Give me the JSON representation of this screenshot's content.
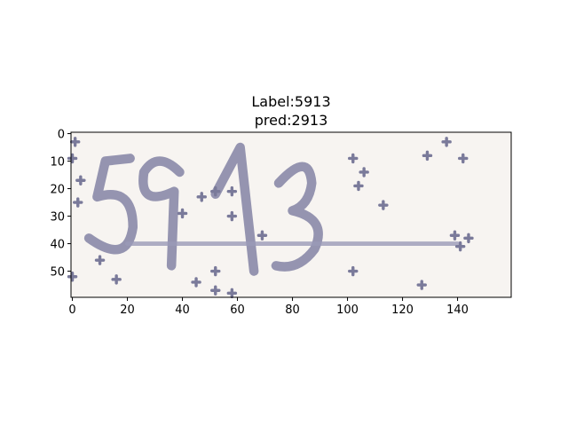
{
  "chart_data": {
    "type": "image",
    "title": [
      "Label:5913",
      "pred:2913"
    ],
    "xlim": [
      -0.5,
      159.5
    ],
    "ylim": [
      59.5,
      -0.5
    ],
    "xticks": [
      0,
      20,
      40,
      60,
      80,
      100,
      120,
      140
    ],
    "yticks": [
      0,
      10,
      20,
      30,
      40,
      50
    ]
  }
}
